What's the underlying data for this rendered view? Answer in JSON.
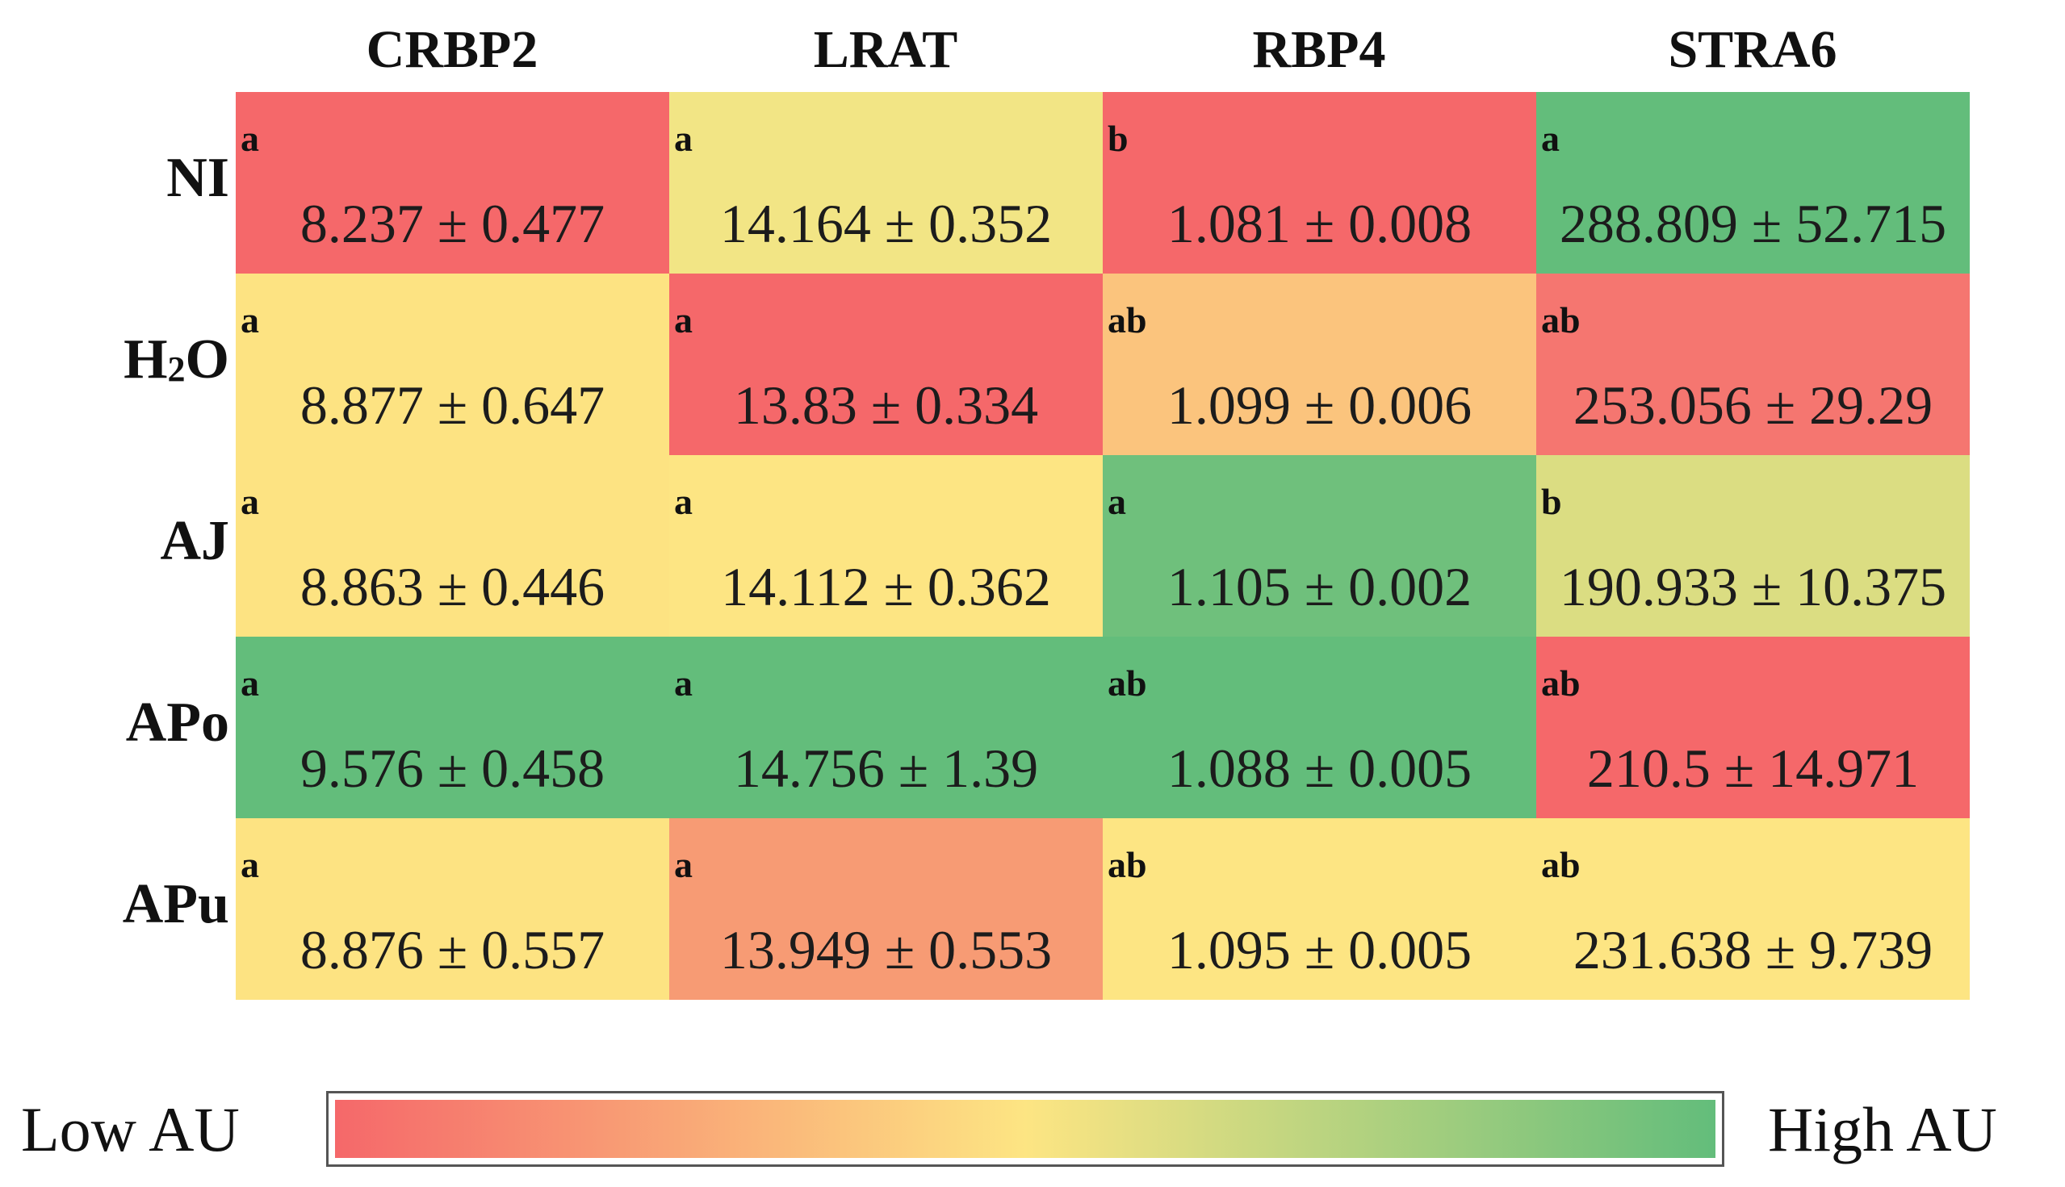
{
  "chart_data": {
    "type": "heatmap",
    "title": "",
    "columns": [
      "CRBP2",
      "LRAT",
      "RBP4",
      "STRA6"
    ],
    "rows": [
      {
        "label": "NI",
        "label_main": "NI",
        "label_sub": "",
        "label_tail": "",
        "cells": [
          {
            "letter": "a",
            "value": "8.237 ± 0.477",
            "color": "#f5686a"
          },
          {
            "letter": "a",
            "value": "14.164 ± 0.352",
            "color": "#f2e585"
          },
          {
            "letter": "b",
            "value": "1.081 ± 0.008",
            "color": "#f5686a"
          },
          {
            "letter": "a",
            "value": "288.809 ± 52.715",
            "color": "#63bd7b"
          }
        ]
      },
      {
        "label": "H2O",
        "label_main": "H",
        "label_sub": "2",
        "label_tail": "O",
        "cells": [
          {
            "letter": "a",
            "value": "8.877 ± 0.647",
            "color": "#fde382"
          },
          {
            "letter": "a",
            "value": "13.83 ± 0.334",
            "color": "#f5686a"
          },
          {
            "letter": "ab",
            "value": "1.099 ± 0.006",
            "color": "#fbc47d"
          },
          {
            "letter": "ab",
            "value": "253.056 ± 29.29",
            "color": "#f57670"
          }
        ]
      },
      {
        "label": "AJ",
        "label_main": "AJ",
        "label_sub": "",
        "label_tail": "",
        "cells": [
          {
            "letter": "a",
            "value": "8.863 ± 0.446",
            "color": "#fde382"
          },
          {
            "letter": "a",
            "value": "14.112 ± 0.362",
            "color": "#fde583"
          },
          {
            "letter": "a",
            "value": "1.105 ± 0.002",
            "color": "#6fc07c"
          },
          {
            "letter": "b",
            "value": "190.933 ± 10.375",
            "color": "#dbdd82"
          }
        ]
      },
      {
        "label": "APo",
        "label_main": "APo",
        "label_sub": "",
        "label_tail": "",
        "cells": [
          {
            "letter": "a",
            "value": "9.576 ± 0.458",
            "color": "#63bd7b"
          },
          {
            "letter": "a",
            "value": "14.756 ± 1.39",
            "color": "#63bd7b"
          },
          {
            "letter": "ab",
            "value": "1.088 ± 0.005",
            "color": "#63bd7b"
          },
          {
            "letter": "ab",
            "value": "210.5 ± 14.971",
            "color": "#f5686a"
          }
        ]
      },
      {
        "label": "APu",
        "label_main": "APu",
        "label_sub": "",
        "label_tail": "",
        "cells": [
          {
            "letter": "a",
            "value": "8.876 ± 0.557",
            "color": "#fde382"
          },
          {
            "letter": "a",
            "value": "13.949 ± 0.553",
            "color": "#f79b74"
          },
          {
            "letter": "ab",
            "value": "1.095 ± 0.005",
            "color": "#fde583"
          },
          {
            "letter": "ab",
            "value": "231.638 ± 9.739",
            "color": "#fde583"
          }
        ]
      }
    ],
    "legend": {
      "low_label": "Low AU",
      "high_label": "High AU",
      "colors": [
        "#f5686a",
        "#fde583",
        "#63bd7b"
      ]
    }
  }
}
